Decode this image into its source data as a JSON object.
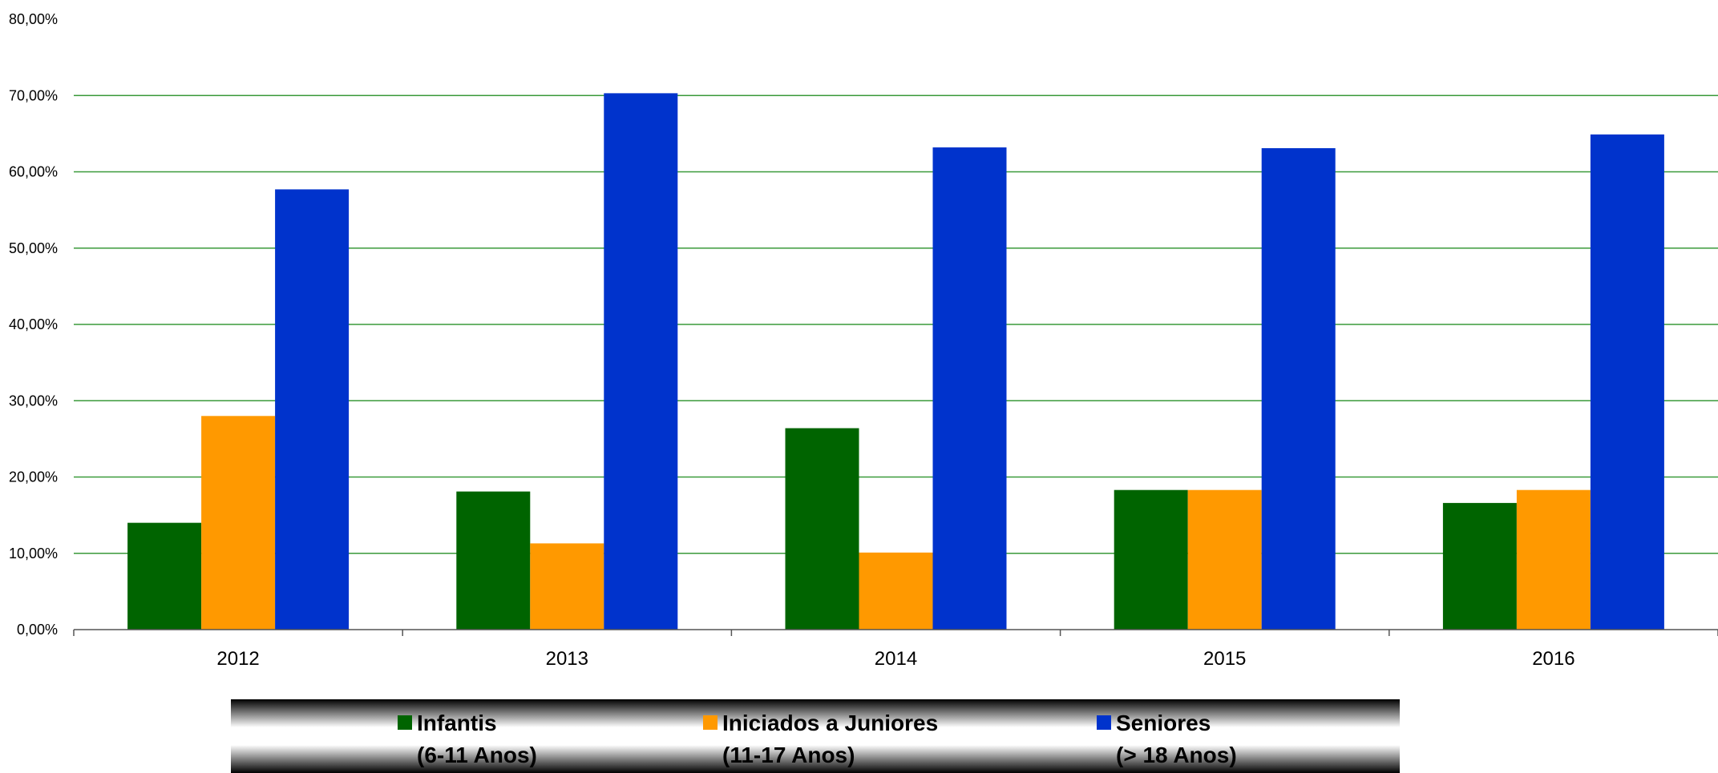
{
  "chart_data": {
    "type": "bar",
    "categories": [
      "2012",
      "2013",
      "2014",
      "2015",
      "2016"
    ],
    "series": [
      {
        "name": "Infantis",
        "name_sub": "(6-11 Anos)",
        "color": "#006400",
        "values": [
          14.0,
          18.1,
          26.4,
          18.3,
          16.6
        ]
      },
      {
        "name": "Iniciados a Juniores",
        "name_sub": "(11-17 Anos)",
        "color": "#ff9900",
        "values": [
          28.0,
          11.3,
          10.1,
          18.3,
          18.3
        ]
      },
      {
        "name": "Seniores",
        "name_sub": "(> 18 Anos)",
        "color": "#0033cc",
        "values": [
          57.7,
          70.3,
          63.2,
          63.1,
          64.9
        ]
      }
    ],
    "y_ticks": [
      "0,00%",
      "10,00%",
      "20,00%",
      "30,00%",
      "40,00%",
      "50,00%",
      "60,00%",
      "70,00%",
      "80,00%"
    ],
    "ylim": [
      0,
      80
    ],
    "grid": true,
    "grid_color": "#3a9a3a",
    "legend_position": "bottom",
    "title": "",
    "xlabel": "",
    "ylabel": ""
  }
}
